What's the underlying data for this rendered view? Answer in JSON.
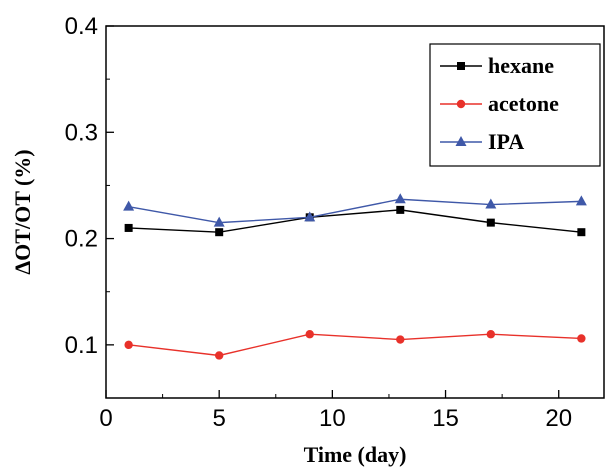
{
  "chart_data": {
    "type": "line",
    "title": "",
    "xlabel": "Time (day)",
    "ylabel": "ΔOT/OT (%)",
    "xlim": [
      0,
      22
    ],
    "ylim": [
      0.05,
      0.4
    ],
    "xticks": [
      0,
      5,
      10,
      15,
      20
    ],
    "xtick_labels": [
      "0",
      "5",
      "10",
      "15",
      "20"
    ],
    "yticks": [
      0.1,
      0.2,
      0.3,
      0.4
    ],
    "ytick_labels": [
      "0.1",
      "0.2",
      "0.3",
      "0.4"
    ],
    "grid": false,
    "legend_position": "top-right",
    "series": [
      {
        "name": "hexane",
        "color": "#000000",
        "marker": "square",
        "x": [
          1,
          5,
          9,
          13,
          17,
          21
        ],
        "values": [
          0.21,
          0.206,
          0.22,
          0.227,
          0.215,
          0.206
        ]
      },
      {
        "name": "acetone",
        "color": "#e8312a",
        "marker": "circle",
        "x": [
          1,
          5,
          9,
          13,
          17,
          21
        ],
        "values": [
          0.1,
          0.09,
          0.11,
          0.105,
          0.11,
          0.106
        ]
      },
      {
        "name": "IPA",
        "color": "#3f58a8",
        "marker": "triangle",
        "x": [
          1,
          5,
          9,
          13,
          17,
          21
        ],
        "values": [
          0.23,
          0.215,
          0.22,
          0.237,
          0.232,
          0.235
        ]
      }
    ]
  }
}
